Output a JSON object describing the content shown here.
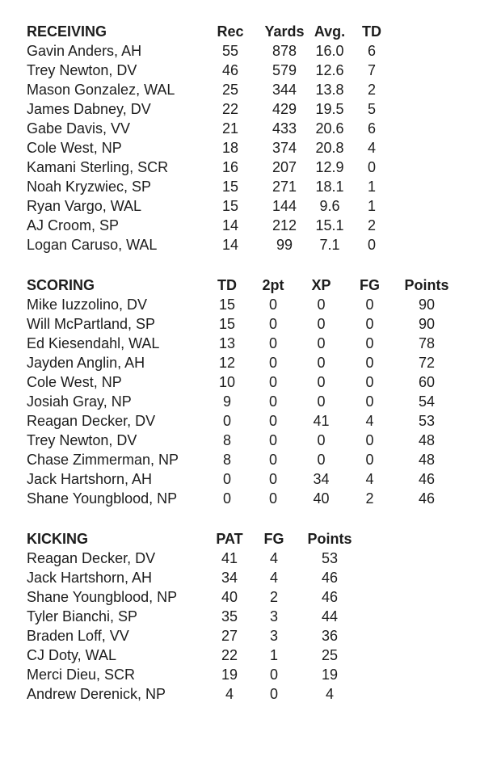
{
  "page": {
    "background_color": "#ffffff",
    "text_color": "#1d1d1d"
  },
  "sections": [
    {
      "id": "receiving",
      "title": "RECEIVING",
      "columns": [
        "Rec",
        "Yards",
        "Avg.",
        "TD"
      ],
      "rows": [
        {
          "name": "Gavin Anders, AH",
          "values": [
            "55",
            "878",
            "16.0",
            "6"
          ]
        },
        {
          "name": "Trey Newton, DV",
          "values": [
            "46",
            "579",
            "12.6",
            "7"
          ]
        },
        {
          "name": "Mason Gonzalez, WAL",
          "values": [
            "25",
            "344",
            "13.8",
            "2"
          ]
        },
        {
          "name": "James Dabney, DV",
          "values": [
            "22",
            "429",
            "19.5",
            "5"
          ]
        },
        {
          "name": "Gabe Davis, VV",
          "values": [
            "21",
            "433",
            "20.6",
            "6"
          ]
        },
        {
          "name": "Cole West, NP",
          "values": [
            "18",
            "374",
            "20.8",
            "4"
          ]
        },
        {
          "name": "Kamani Sterling, SCR",
          "values": [
            "16",
            "207",
            "12.9",
            "0"
          ]
        },
        {
          "name": "Noah Kryzwiec, SP",
          "values": [
            "15",
            "271",
            "18.1",
            "1"
          ]
        },
        {
          "name": "Ryan Vargo, WAL",
          "values": [
            "15",
            "144",
            "9.6",
            "1"
          ]
        },
        {
          "name": "AJ Croom, SP",
          "values": [
            "14",
            "212",
            "15.1",
            "2"
          ]
        },
        {
          "name": "Logan Caruso, WAL",
          "values": [
            "14",
            "99",
            "7.1",
            "0"
          ]
        }
      ]
    },
    {
      "id": "scoring",
      "title": "SCORING",
      "columns": [
        "TD",
        "2pt",
        "XP",
        "FG",
        "Points"
      ],
      "rows": [
        {
          "name": "Mike Iuzzolino, DV",
          "values": [
            "15",
            "0",
            "0",
            "0",
            "90"
          ]
        },
        {
          "name": "Will McPartland, SP",
          "values": [
            "15",
            "0",
            "0",
            "0",
            "90"
          ]
        },
        {
          "name": "Ed Kiesendahl, WAL",
          "values": [
            "13",
            "0",
            "0",
            "0",
            "78"
          ]
        },
        {
          "name": "Jayden Anglin, AH",
          "values": [
            "12",
            "0",
            "0",
            "0",
            "72"
          ]
        },
        {
          "name": "Cole West, NP",
          "values": [
            "10",
            "0",
            "0",
            "0",
            "60"
          ]
        },
        {
          "name": "Josiah Gray, NP",
          "values": [
            "9",
            "0",
            "0",
            "0",
            "54"
          ]
        },
        {
          "name": "Reagan Decker, DV",
          "values": [
            "0",
            "0",
            "41",
            "4",
            "53"
          ]
        },
        {
          "name": "Trey Newton, DV",
          "values": [
            "8",
            "0",
            "0",
            "0",
            "48"
          ]
        },
        {
          "name": "Chase Zimmerman, NP",
          "values": [
            "8",
            "0",
            "0",
            "0",
            "48"
          ]
        },
        {
          "name": "Jack Hartshorn, AH",
          "values": [
            "0",
            "0",
            "34",
            "4",
            "46"
          ]
        },
        {
          "name": "Shane Youngblood, NP",
          "values": [
            "0",
            "0",
            "40",
            "2",
            "46"
          ]
        }
      ]
    },
    {
      "id": "kicking",
      "title": "KICKING",
      "columns": [
        "PAT",
        "FG",
        "Points"
      ],
      "rows": [
        {
          "name": "Reagan Decker, DV",
          "values": [
            "41",
            "4",
            "53"
          ]
        },
        {
          "name": "Jack Hartshorn, AH",
          "values": [
            "34",
            "4",
            "46"
          ]
        },
        {
          "name": "Shane Youngblood, NP",
          "values": [
            "40",
            "2",
            "46"
          ]
        },
        {
          "name": "Tyler Bianchi, SP",
          "values": [
            "35",
            "3",
            "44"
          ]
        },
        {
          "name": "Braden Loff, VV",
          "values": [
            "27",
            "3",
            "36"
          ]
        },
        {
          "name": "CJ Doty, WAL",
          "values": [
            "22",
            "1",
            "25"
          ]
        },
        {
          "name": "Merci Dieu, SCR",
          "values": [
            "19",
            "0",
            "19"
          ]
        },
        {
          "name": "Andrew Derenick, NP",
          "values": [
            "4",
            "0",
            "4"
          ]
        }
      ]
    }
  ]
}
